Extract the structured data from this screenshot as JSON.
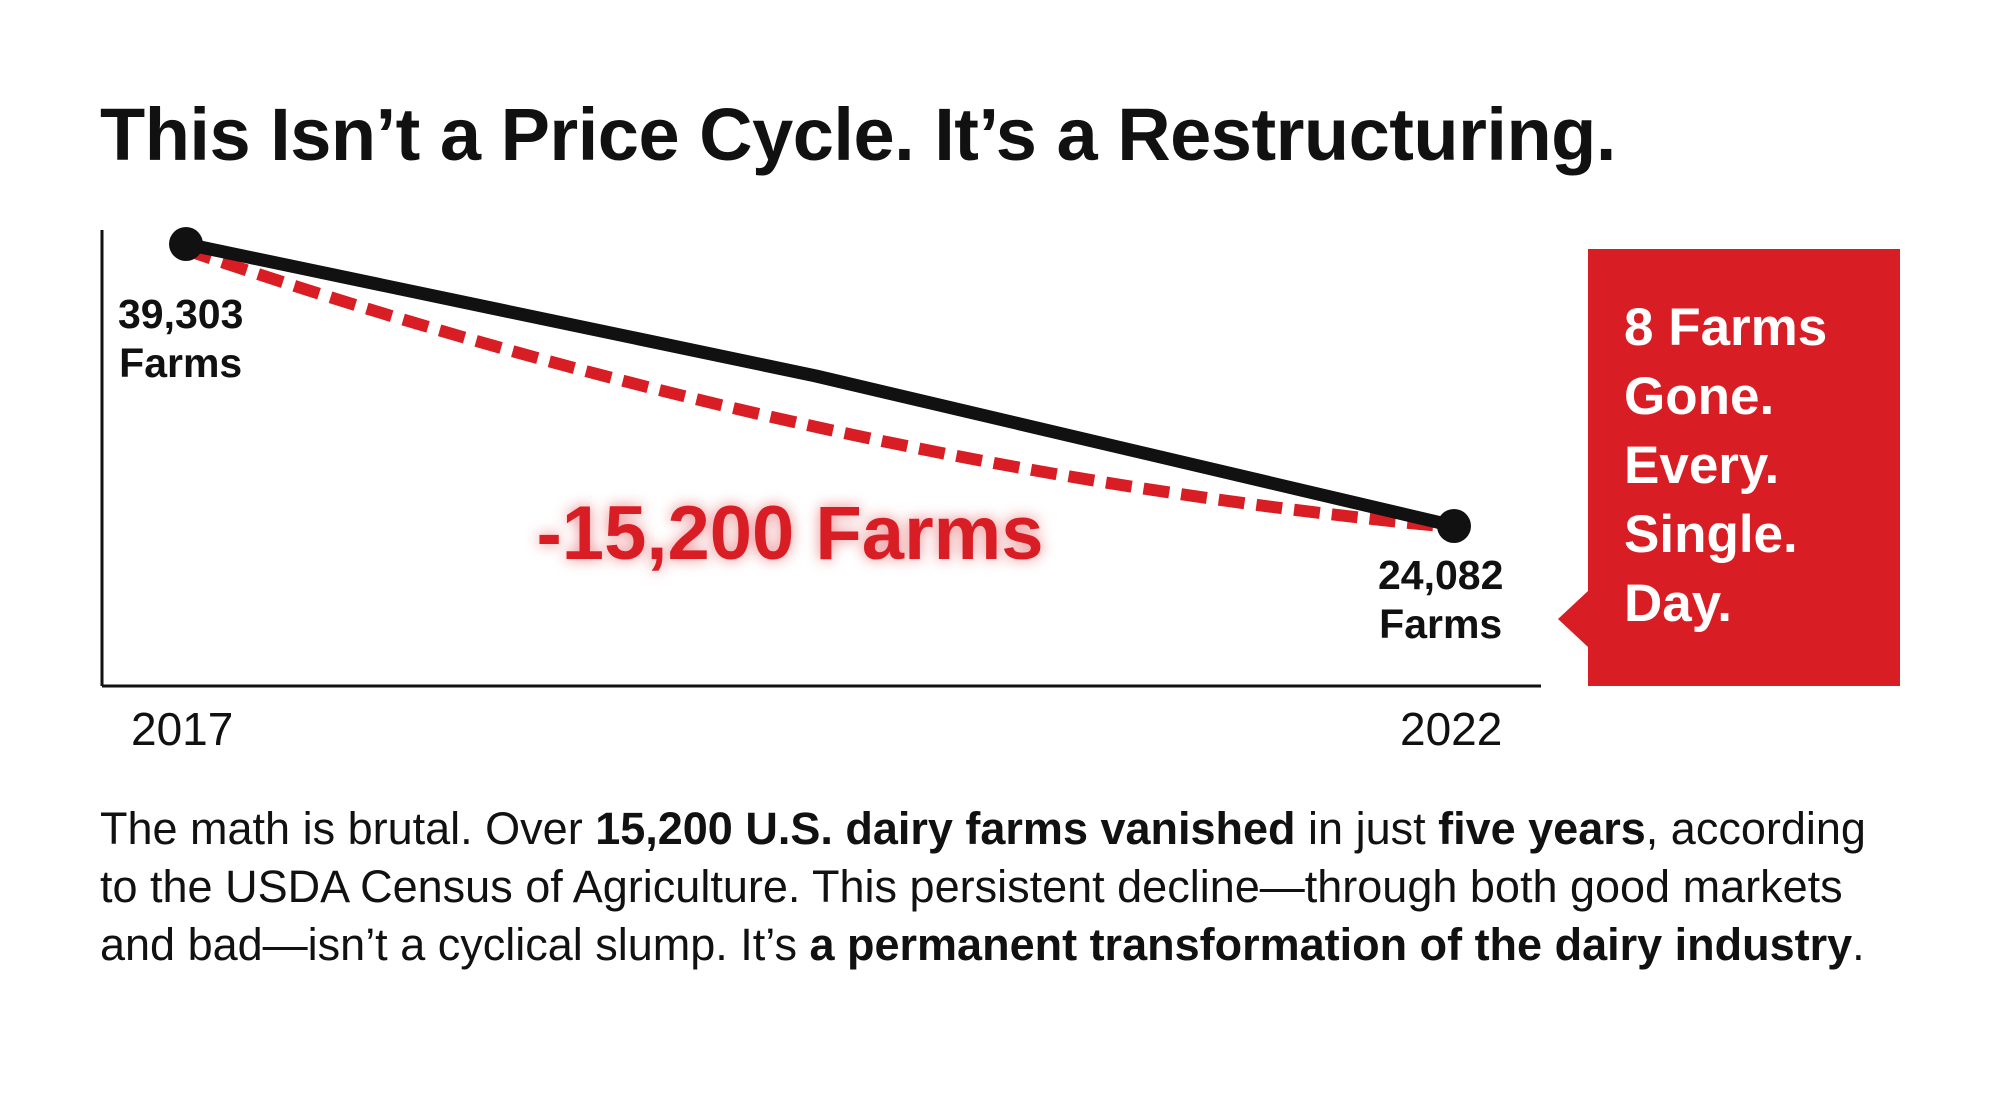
{
  "title": "This Isn’t a Price Cycle. It’s a Restructuring.",
  "chart_data": {
    "type": "line",
    "title": "This Isn’t a Price Cycle. It’s a Restructuring.",
    "x": [
      "2017",
      "2022"
    ],
    "series": [
      {
        "name": "U.S. dairy farms",
        "values": [
          39303,
          24082
        ],
        "color": "#111111"
      }
    ],
    "point_labels": [
      "39,303\nFarms",
      "24,082\nFarms"
    ],
    "point_label_lines": [
      [
        "39,303",
        "Farms"
      ],
      [
        "24,082",
        "Farms"
      ]
    ],
    "annotation": "-15,200 Farms",
    "x_ticks": [
      "2017",
      "2022"
    ],
    "xlabel": "",
    "ylabel": "",
    "grid": false,
    "accent_color": "#d81e24"
  },
  "callout": {
    "lines": [
      "8 Farms",
      "Gone.",
      "Every.",
      "Single.",
      "Day."
    ]
  },
  "paragraph": {
    "p1": "The math is brutal. Over ",
    "b1": "15,200 U.S. dairy farms vanished",
    "p2": " in just ",
    "b2": "five years",
    "p3": ", according to the USDA Census of Agriculture. This persistent decline—through both good markets and bad—isn’t a cyclical slump. It’s ",
    "b3": "a permanent transformation of the dairy industry",
    "p4": "."
  }
}
